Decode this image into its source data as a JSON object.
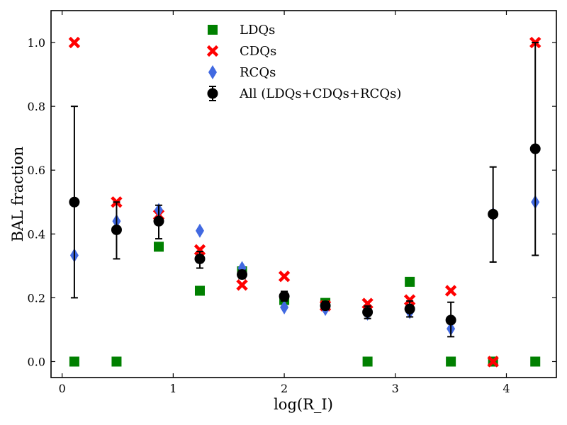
{
  "chart_data": {
    "type": "scatter",
    "xlabel": "log(R_I)",
    "ylabel": "BAL fraction",
    "xlim": [
      -0.1,
      4.45
    ],
    "ylim": [
      -0.05,
      1.1
    ],
    "xticks": [
      0,
      1,
      2,
      3,
      4
    ],
    "yticks": [
      0.0,
      0.2,
      0.4,
      0.6,
      0.8,
      1.0
    ],
    "xtick_labels": [
      "0",
      "1",
      "2",
      "3",
      "4"
    ],
    "ytick_labels": [
      "0.0",
      "0.2",
      "0.4",
      "0.6",
      "0.8",
      "1.0"
    ],
    "grid": false,
    "legend_position": "top-center",
    "series": [
      {
        "name": "LDQs",
        "marker": "square",
        "color": "#008000",
        "points": [
          {
            "x": 0.11,
            "y": 0.0
          },
          {
            "x": 0.49,
            "y": 0.0
          },
          {
            "x": 0.87,
            "y": 0.36
          },
          {
            "x": 1.24,
            "y": 0.222
          },
          {
            "x": 1.62,
            "y": 0.283
          },
          {
            "x": 2.0,
            "y": 0.193
          },
          {
            "x": 2.37,
            "y": 0.184
          },
          {
            "x": 2.75,
            "y": 0.0
          },
          {
            "x": 3.13,
            "y": 0.25
          },
          {
            "x": 3.5,
            "y": 0.0
          },
          {
            "x": 3.88,
            "y": 0.0
          },
          {
            "x": 4.26,
            "y": 0.0
          }
        ]
      },
      {
        "name": "CDQs",
        "marker": "x",
        "color": "#ff0000",
        "points": [
          {
            "x": 0.11,
            "y": 1.0
          },
          {
            "x": 0.49,
            "y": 0.5
          },
          {
            "x": 0.87,
            "y": 0.46
          },
          {
            "x": 1.24,
            "y": 0.35
          },
          {
            "x": 1.62,
            "y": 0.24
          },
          {
            "x": 2.0,
            "y": 0.267
          },
          {
            "x": 2.37,
            "y": 0.175
          },
          {
            "x": 2.75,
            "y": 0.182
          },
          {
            "x": 3.13,
            "y": 0.193
          },
          {
            "x": 3.5,
            "y": 0.222
          },
          {
            "x": 3.88,
            "y": 0.0
          },
          {
            "x": 4.26,
            "y": 1.0
          }
        ]
      },
      {
        "name": "RCQs",
        "marker": "diamond",
        "color": "#4169e1",
        "points": [
          {
            "x": 0.11,
            "y": 0.333
          },
          {
            "x": 0.49,
            "y": 0.44
          },
          {
            "x": 0.87,
            "y": 0.475
          },
          {
            "x": 1.24,
            "y": 0.41
          },
          {
            "x": 1.62,
            "y": 0.293
          },
          {
            "x": 2.0,
            "y": 0.17
          },
          {
            "x": 2.37,
            "y": 0.165
          },
          {
            "x": 2.75,
            "y": 0.15
          },
          {
            "x": 3.13,
            "y": 0.155
          },
          {
            "x": 3.5,
            "y": 0.103
          },
          {
            "x": 3.88,
            "y": 0.462
          },
          {
            "x": 4.26,
            "y": 0.5
          }
        ]
      },
      {
        "name": "All (LDQs+CDQs+RCQs)",
        "marker": "circle",
        "color": "#000000",
        "points": [
          {
            "x": 0.11,
            "y": 0.5,
            "err_low": 0.2,
            "err_high": 0.8
          },
          {
            "x": 0.49,
            "y": 0.413,
            "err_low": 0.322,
            "err_high": 0.5
          },
          {
            "x": 0.87,
            "y": 0.44,
            "err_low": 0.385,
            "err_high": 0.49
          },
          {
            "x": 1.24,
            "y": 0.322,
            "err_low": 0.293,
            "err_high": 0.345
          },
          {
            "x": 1.62,
            "y": 0.273,
            "err_low": 0.26,
            "err_high": 0.286
          },
          {
            "x": 2.0,
            "y": 0.205,
            "err_low": 0.19,
            "err_high": 0.22
          },
          {
            "x": 2.37,
            "y": 0.175,
            "err_low": 0.163,
            "err_high": 0.188
          },
          {
            "x": 2.75,
            "y": 0.155,
            "err_low": 0.135,
            "err_high": 0.174
          },
          {
            "x": 3.13,
            "y": 0.165,
            "err_low": 0.14,
            "err_high": 0.19
          },
          {
            "x": 3.5,
            "y": 0.13,
            "err_low": 0.078,
            "err_high": 0.186
          },
          {
            "x": 3.88,
            "y": 0.462,
            "err_low": 0.312,
            "err_high": 0.61
          },
          {
            "x": 4.26,
            "y": 0.667,
            "err_low": 0.333,
            "err_high": 1.0
          }
        ]
      }
    ]
  }
}
